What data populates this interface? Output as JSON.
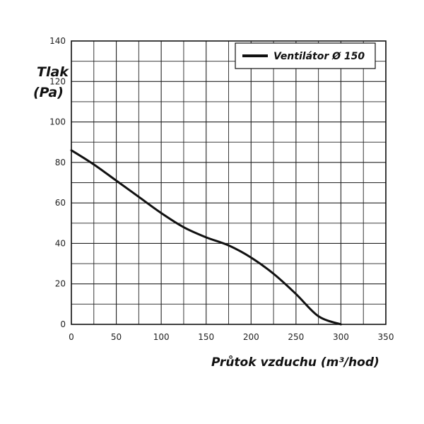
{
  "chart_data": {
    "type": "line",
    "xlabel": "Průtok vzduchu (m³/hod)",
    "ylabel_line1": "Tlak",
    "ylabel_line2": "(Pa)",
    "xlim": [
      0,
      350
    ],
    "ylim": [
      0,
      140
    ],
    "x_ticks": [
      0,
      50,
      100,
      150,
      200,
      250,
      300,
      350
    ],
    "y_ticks": [
      0,
      20,
      40,
      60,
      80,
      100,
      120,
      140
    ],
    "x_minor_step": 25,
    "y_minor_step": 10,
    "grid": true,
    "legend_position": "top-right",
    "series": [
      {
        "name": "Ventilátor Ø 150",
        "color": "#111111",
        "x": [
          0,
          25,
          50,
          75,
          100,
          125,
          150,
          175,
          200,
          225,
          250,
          275,
          300
        ],
        "y": [
          86,
          79,
          71,
          63,
          55,
          48,
          43,
          39,
          33,
          25,
          15,
          4,
          0
        ]
      }
    ]
  }
}
